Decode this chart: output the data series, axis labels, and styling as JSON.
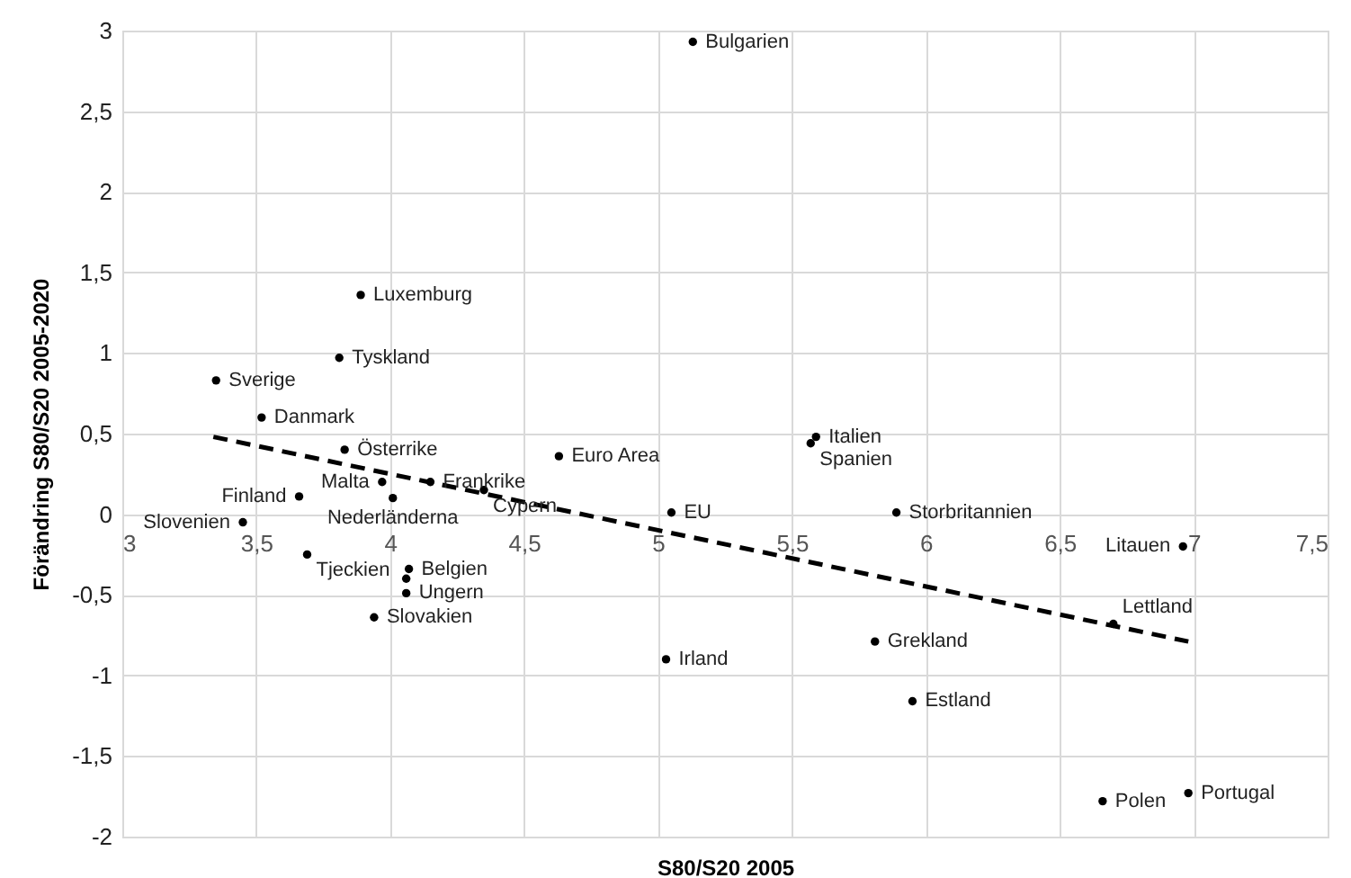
{
  "chart_data": {
    "type": "scatter",
    "xlabel": "S80/S20 2005",
    "ylabel": "Förändring S80/S20 2005-2020",
    "xlim": [
      3,
      7.5
    ],
    "ylim": [
      -2,
      3
    ],
    "xticks": [
      3,
      {
        "value": 3.5,
        "label": "3,5"
      },
      4,
      {
        "value": 4.5,
        "label": "4,5"
      },
      5,
      {
        "value": 5.5,
        "label": "5,5"
      },
      6,
      {
        "value": 6.5,
        "label": "6,5"
      },
      7,
      {
        "value": 7.5,
        "label": "7,5"
      }
    ],
    "yticks": [
      -2,
      {
        "value": -1.5,
        "label": "-1,5"
      },
      -1,
      {
        "value": -0.5,
        "label": "-0,5"
      },
      0,
      {
        "value": 0.5,
        "label": "0,5"
      },
      1,
      {
        "value": 1.5,
        "label": "1,5"
      },
      2,
      {
        "value": 2.5,
        "label": "2,5"
      },
      3
    ],
    "grid": true,
    "series": [
      {
        "type": "scatter",
        "color": "#000000",
        "marker": "circle",
        "x": [
          5.13,
          3.89,
          3.81,
          3.35,
          3.52,
          3.83,
          3.97,
          4.01,
          4.15,
          4.35,
          3.66,
          3.45,
          3.69,
          4.07,
          4.06,
          4.06,
          3.94,
          4.63,
          5.59,
          5.57,
          5.05,
          5.89,
          6.96,
          6.7,
          5.81,
          5.03,
          5.95,
          6.66,
          6.98
        ],
        "values": [
          2.93,
          1.36,
          0.97,
          0.83,
          0.6,
          0.4,
          0.2,
          0.1,
          0.2,
          0.15,
          0.11,
          -0.05,
          -0.25,
          -0.34,
          -0.4,
          -0.49,
          -0.64,
          0.36,
          0.48,
          0.44,
          0.01,
          0.01,
          -0.2,
          -0.68,
          -0.79,
          -0.9,
          -1.16,
          -1.78,
          -1.73
        ]
      },
      {
        "type": "line",
        "color": "#000000",
        "line_style": "dashed",
        "marker": "none",
        "x": [
          3.34,
          6.98
        ],
        "values": [
          0.48,
          -0.79
        ]
      }
    ],
    "annotations": [
      {
        "text": "Bulgarien",
        "x": 5.13,
        "y": 2.93
      },
      {
        "text": "Luxemburg",
        "x": 3.89,
        "y": 1.36
      },
      {
        "text": "Tyskland",
        "x": 3.81,
        "y": 0.97
      },
      {
        "text": "Sverige",
        "x": 3.35,
        "y": 0.83
      },
      {
        "text": "Danmark",
        "x": 3.52,
        "y": 0.6
      },
      {
        "text": "Österrike",
        "x": 3.83,
        "y": 0.4
      },
      {
        "text": "Malta",
        "x": 3.97,
        "y": 0.2
      },
      {
        "text": "Nederländerna",
        "x": 4.01,
        "y": 0.1
      },
      {
        "text": "Frankrike",
        "x": 4.15,
        "y": 0.2
      },
      {
        "text": "Cypern",
        "x": 4.35,
        "y": 0.15
      },
      {
        "text": "Finland",
        "x": 3.66,
        "y": 0.11
      },
      {
        "text": "Slovenien",
        "x": 3.45,
        "y": -0.05
      },
      {
        "text": "Tjeckien",
        "x": 3.69,
        "y": -0.25
      },
      {
        "text": "Belgien",
        "x": 4.07,
        "y": -0.34
      },
      {
        "text": "Ungern",
        "x": 4.06,
        "y": -0.49
      },
      {
        "text": "Slovakien",
        "x": 3.94,
        "y": -0.64
      },
      {
        "text": "Euro Area",
        "x": 4.63,
        "y": 0.36
      },
      {
        "text": "Italien",
        "x": 5.59,
        "y": 0.48
      },
      {
        "text": "Spanien",
        "x": 5.57,
        "y": 0.44
      },
      {
        "text": "EU",
        "x": 5.05,
        "y": 0.01
      },
      {
        "text": "Storbritannien",
        "x": 5.89,
        "y": 0.01
      },
      {
        "text": "Litauen",
        "x": 6.96,
        "y": -0.2
      },
      {
        "text": "Lettland",
        "x": 6.7,
        "y": -0.68
      },
      {
        "text": "Grekland",
        "x": 5.81,
        "y": -0.79
      },
      {
        "text": "Irland",
        "x": 5.03,
        "y": -0.9
      },
      {
        "text": "Estland",
        "x": 5.95,
        "y": -1.16
      },
      {
        "text": "Polen",
        "x": 6.66,
        "y": -1.78
      },
      {
        "text": "Portugal",
        "x": 6.98,
        "y": -1.73
      }
    ]
  }
}
